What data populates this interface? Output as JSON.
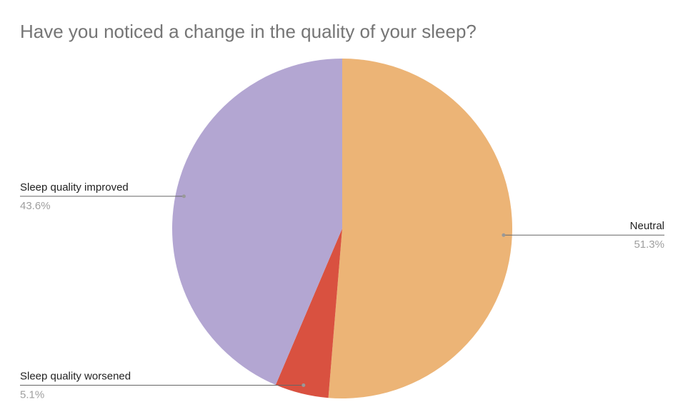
{
  "chart_data": {
    "type": "pie",
    "title": "Have you noticed a change in the quality of your sleep?",
    "categories": [
      "Neutral",
      "Sleep quality worsened",
      "Sleep quality improved"
    ],
    "values": [
      51.3,
      5.1,
      43.6
    ],
    "value_labels": [
      "51.3%",
      "5.1%",
      "43.6%"
    ],
    "colors": [
      "#ecb476",
      "#d95140",
      "#b3a6d2"
    ]
  }
}
